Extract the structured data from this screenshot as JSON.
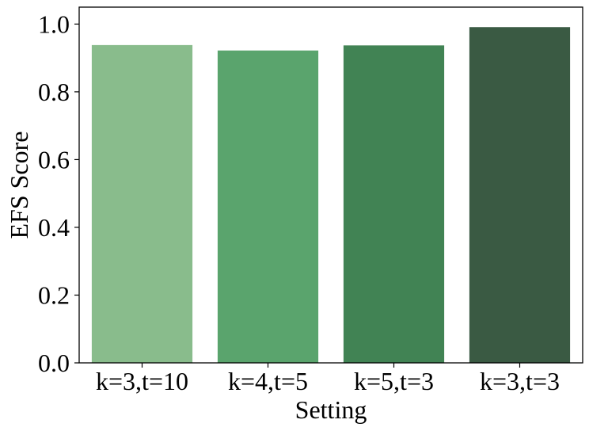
{
  "chart_data": {
    "type": "bar",
    "xlabel": "Setting",
    "ylabel": "EFS Score",
    "categories": [
      "k=3,t=10",
      "k=4,t=5",
      "k=5,t=3",
      "k=3,t=3"
    ],
    "values": [
      0.938,
      0.922,
      0.937,
      0.991
    ],
    "colors": [
      "#89bc8c",
      "#5aa46d",
      "#418354",
      "#3a5a43"
    ],
    "ylim": [
      0,
      1.05
    ],
    "yticks": [
      0.0,
      0.2,
      0.4,
      0.6,
      0.8,
      1.0
    ],
    "ytick_labels": [
      "0.0",
      "0.2",
      "0.4",
      "0.6",
      "0.8",
      "1.0"
    ],
    "grid": false,
    "legend": null
  }
}
